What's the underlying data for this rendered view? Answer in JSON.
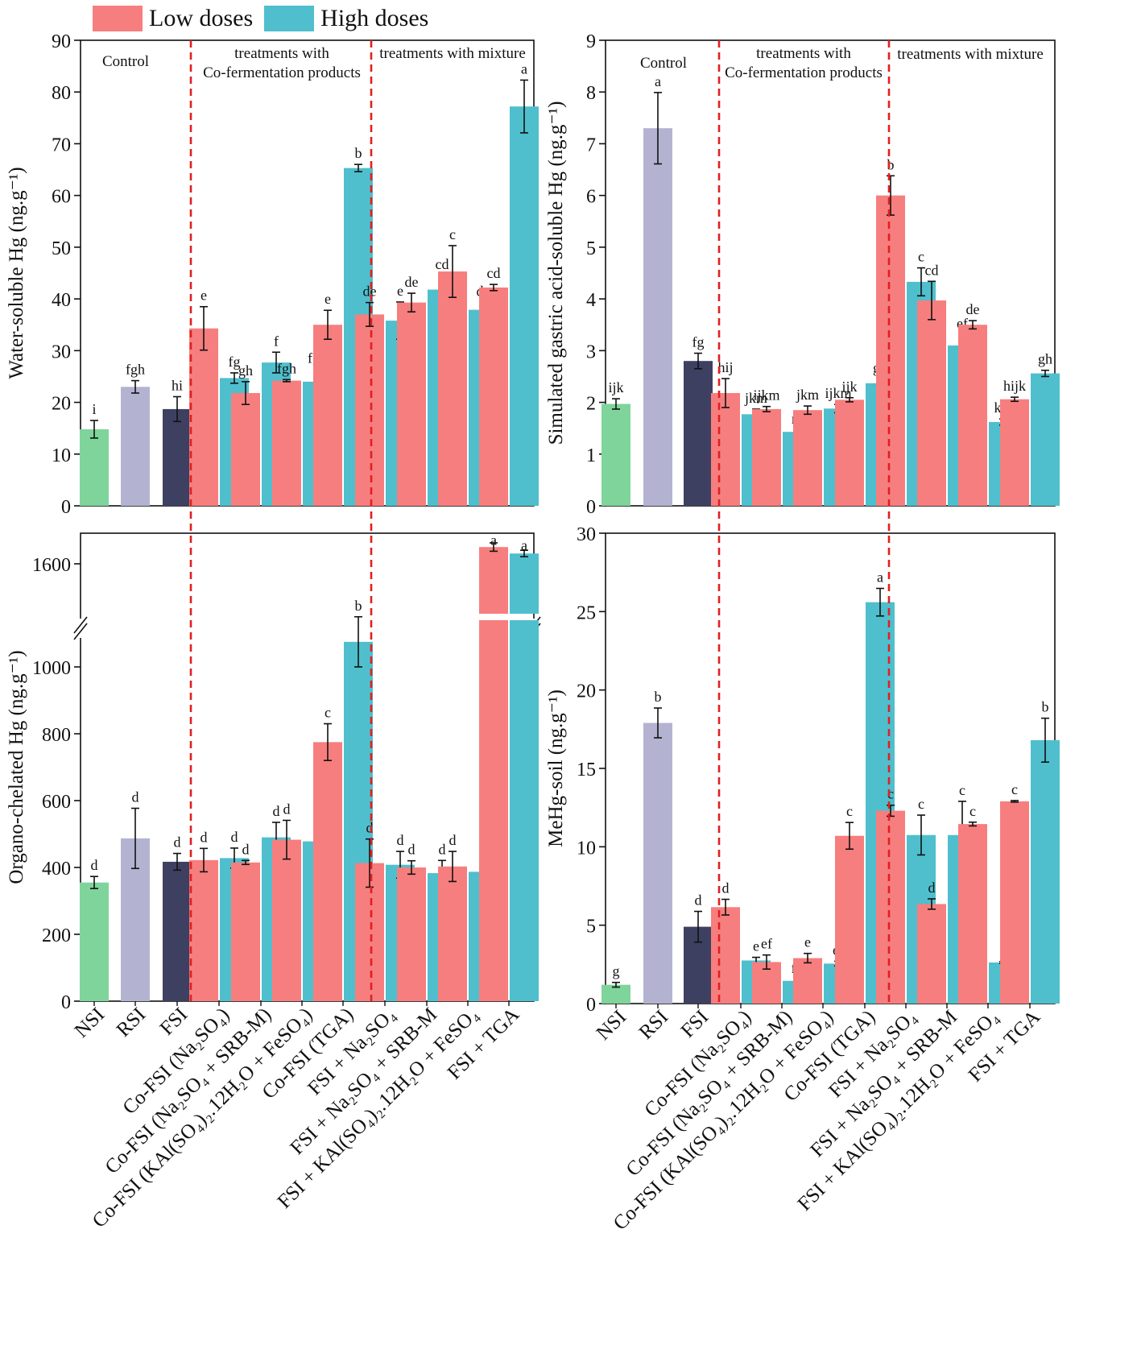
{
  "legend": {
    "low": {
      "label": "Low doses",
      "color": "#f77e7e"
    },
    "high": {
      "label": "High doses",
      "color": "#4fbfcd"
    }
  },
  "colors": {
    "NSI": "#7fd49b",
    "RSI": "#b3b3d1",
    "FSI": "#3e4061",
    "divider": "#e02020"
  },
  "group_labels": {
    "control": "Control",
    "cofermentation": [
      "treatments with",
      "Co-fermentation products"
    ],
    "mixture": "treatments with mixture"
  },
  "categories": [
    "NSI",
    "RSI",
    "FSI",
    "Co-FSI (Na₂SO₄)",
    "Co-FSI (Na₂SO₄ + SRB-M)",
    "Co-FSI (KAl(SO₄)₂.12H₂O + FeSO₄)",
    "Co-FSI (TGA)",
    "FSI + Na₂SO₄",
    "FSI + Na₂SO₄ + SRB-M",
    "FSI + KAl(SO₄)₂.12H₂O + FeSO₄",
    "FSI + TGA"
  ],
  "chart_data": [
    {
      "type": "bar",
      "ylabel": "Water-soluble Hg (ng.g⁻¹)",
      "ylim": [
        0,
        90
      ],
      "yticks": [
        0,
        10,
        20,
        30,
        40,
        50,
        60,
        70,
        80,
        90
      ],
      "controls": [
        {
          "value": 14.8,
          "err": 1.7,
          "letter": "i"
        },
        {
          "value": 23.0,
          "err": 1.2,
          "letter": "fgh"
        },
        {
          "value": 18.7,
          "err": 2.4,
          "letter": "hi"
        }
      ],
      "series": [
        {
          "name": "Low doses",
          "values": [
            34.3,
            21.8,
            24.2,
            35.0,
            37.0,
            39.3,
            45.3,
            42.2
          ],
          "errors": [
            4.2,
            2.2,
            0.2,
            2.8,
            2.3,
            1.8,
            5.0,
            0.6
          ],
          "letters": [
            "e",
            "gh",
            "fgh",
            "e",
            "de",
            "de",
            "c",
            "cd"
          ]
        },
        {
          "name": "High doses",
          "values": [
            24.7,
            27.7,
            24.0,
            65.3,
            35.8,
            41.8,
            37.9,
            77.2
          ],
          "errors": [
            1.0,
            2.0,
            2.4,
            0.7,
            3.6,
            2.7,
            1.4,
            5.1
          ],
          "letters": [
            "fg",
            "f",
            "fgh",
            "b",
            "e",
            "cd",
            "de",
            "a"
          ]
        }
      ]
    },
    {
      "type": "bar",
      "ylabel": "Simulated gastric acid-soluble Hg (ng.g⁻¹)",
      "ylim": [
        0,
        9
      ],
      "yticks": [
        0,
        1,
        2,
        3,
        4,
        5,
        6,
        7,
        8,
        9
      ],
      "controls": [
        {
          "value": 1.97,
          "err": 0.1,
          "letter": "ijk"
        },
        {
          "value": 7.3,
          "err": 0.69,
          "letter": "a"
        },
        {
          "value": 2.8,
          "err": 0.15,
          "letter": "fg"
        }
      ],
      "series": [
        {
          "name": "Low doses",
          "values": [
            2.18,
            1.87,
            1.85,
            2.05,
            6.0,
            3.97,
            3.5,
            2.06
          ],
          "errors": [
            0.28,
            0.05,
            0.08,
            0.04,
            0.38,
            0.37,
            0.08,
            0.04
          ],
          "letters": [
            "hij",
            "ijkm",
            "jkm",
            "ijk",
            "b",
            "cd",
            "de",
            "hijk"
          ]
        },
        {
          "name": "High doses",
          "values": [
            1.77,
            1.43,
            1.88,
            2.37,
            4.33,
            3.1,
            1.62,
            2.56
          ],
          "errors": [
            0.1,
            0.03,
            0.08,
            0.08,
            0.27,
            0.21,
            0.06,
            0.06
          ],
          "letters": [
            "jkm",
            "m",
            "ijkm",
            "gh",
            "c",
            "ef",
            "km",
            "gh"
          ]
        }
      ]
    },
    {
      "type": "bar",
      "ylabel": "Organo-chelated Hg (ng.g⁻¹)",
      "axis_break": [
        1200,
        1500
      ],
      "yticks": [
        0,
        200,
        400,
        600,
        800,
        1000,
        1600
      ],
      "controls": [
        {
          "value": 355,
          "err": 18,
          "letter": "d"
        },
        {
          "value": 487,
          "err": 90,
          "letter": "d"
        },
        {
          "value": 417,
          "err": 25,
          "letter": "d"
        }
      ],
      "series": [
        {
          "name": "Low doses",
          "values": [
            422,
            415,
            483,
            775,
            413,
            400,
            403,
            1548
          ],
          "errors": [
            35,
            6,
            58,
            55,
            72,
            20,
            45,
            13
          ],
          "letters": [
            "d",
            "d",
            "d",
            "c",
            "d",
            "d",
            "d",
            "a"
          ]
        },
        {
          "name": "High doses",
          "values": [
            428,
            490,
            478,
            1075,
            408,
            383,
            387,
            1568
          ],
          "errors": [
            30,
            45,
            12,
            75,
            40,
            38,
            20,
            10
          ],
          "letters": [
            "d",
            "d",
            "d",
            "b",
            "d",
            "d",
            "d",
            "a"
          ]
        }
      ]
    },
    {
      "type": "bar",
      "ylabel": "MeHg-soil (ng.g⁻¹)",
      "ylim": [
        0,
        30
      ],
      "yticks": [
        0,
        5,
        10,
        15,
        20,
        25,
        30
      ],
      "controls": [
        {
          "value": 1.2,
          "err": 0.15,
          "letter": "g"
        },
        {
          "value": 17.9,
          "err": 0.95,
          "letter": "b"
        },
        {
          "value": 4.9,
          "err": 0.98,
          "letter": "d"
        }
      ],
      "series": [
        {
          "name": "Low doses",
          "values": [
            6.15,
            2.65,
            2.9,
            10.7,
            12.3,
            6.35,
            11.45,
            12.9
          ],
          "errors": [
            0.5,
            0.45,
            0.3,
            0.85,
            0.35,
            0.33,
            0.12,
            0.05
          ],
          "letters": [
            "d",
            "ef",
            "e",
            "c",
            "c",
            "d",
            "c",
            "c"
          ]
        },
        {
          "name": "High doses",
          "values": [
            2.75,
            1.45,
            2.55,
            25.6,
            10.75,
            10.75,
            2.62,
            16.8
          ],
          "errors": [
            0.2,
            0.1,
            0.15,
            0.88,
            1.27,
            2.15,
            0.06,
            1.4
          ],
          "letters": [
            "e",
            "fg",
            "ef",
            "a",
            "c",
            "c",
            "e",
            "b"
          ]
        }
      ]
    }
  ]
}
